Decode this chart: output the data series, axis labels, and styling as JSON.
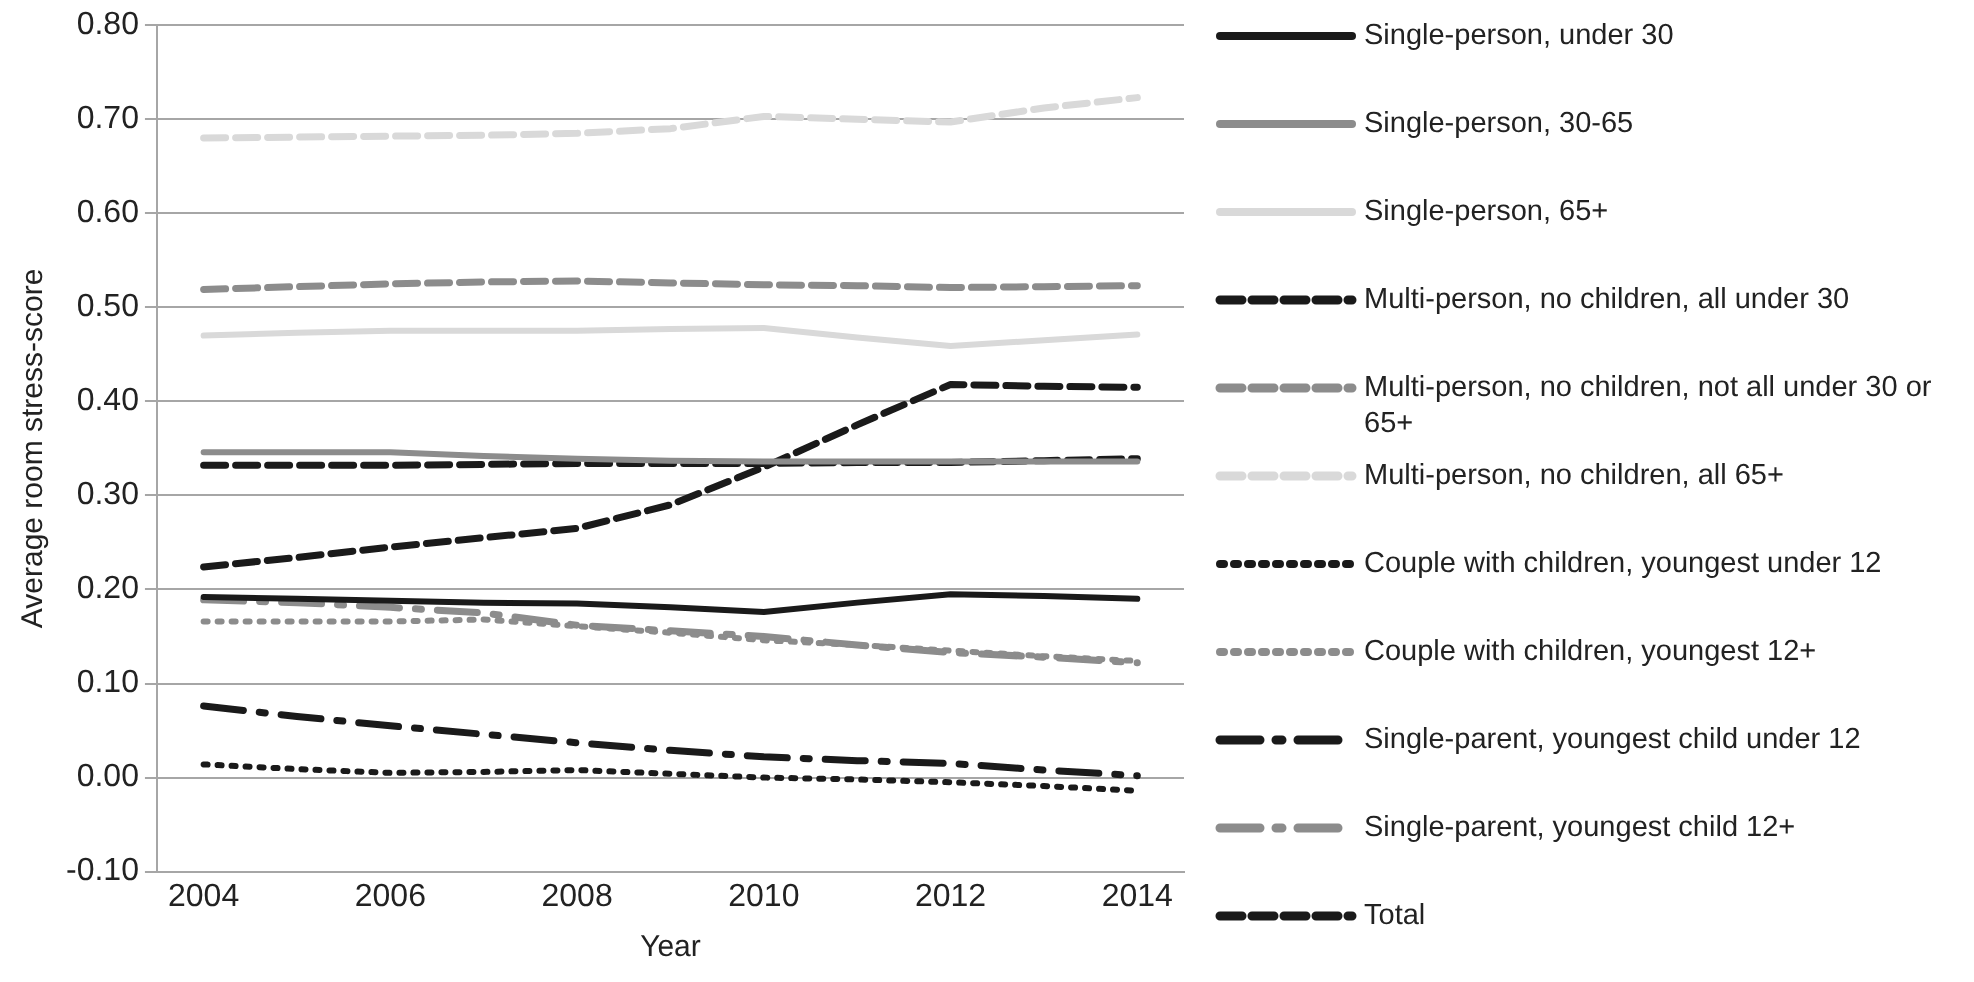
{
  "chart_data": {
    "type": "line",
    "xlabel": "Year",
    "ylabel": "Average room stress-score",
    "categories": [
      "2004",
      null,
      "2006",
      null,
      "2008",
      null,
      "2010",
      null,
      "2012",
      null,
      "2014"
    ],
    "ylim": [
      -0.1,
      0.8
    ],
    "yticks": [
      {
        "value": -0.1,
        "label": "-0.10"
      },
      {
        "value": 0,
        "label": "0.00"
      },
      {
        "value": 0.1,
        "label": "0.10"
      },
      {
        "value": 0.2,
        "label": "0.20"
      },
      {
        "value": 0.3,
        "label": "0.30"
      },
      {
        "value": 0.4,
        "label": "0.40"
      },
      {
        "value": 0.5,
        "label": "0.50"
      },
      {
        "value": 0.6,
        "label": "0.60"
      },
      {
        "value": 0.7,
        "label": "0.70"
      },
      {
        "value": 0.8,
        "label": "0.80"
      }
    ],
    "grid": "y",
    "legend": "right",
    "marker": "none",
    "series": [
      {
        "name": "Single-person, under 30",
        "color": "#1a1a1a",
        "line_style": "solid",
        "values": [
          0.192,
          0.19,
          0.188,
          0.186,
          0.185,
          0.181,
          0.176,
          0.186,
          0.195,
          0.193,
          0.19
        ]
      },
      {
        "name": "Single-person, 30-65",
        "color": "#8c8c8c",
        "line_style": "solid",
        "values": [
          0.346,
          0.346,
          0.346,
          0.342,
          0.339,
          0.337,
          0.336,
          0.336,
          0.336,
          0.336,
          0.336
        ]
      },
      {
        "name": "Single-person, 65+",
        "color": "#d9d9d9",
        "line_style": "solid",
        "values": [
          0.47,
          0.473,
          0.475,
          0.475,
          0.475,
          0.477,
          0.478,
          0.468,
          0.459,
          0.465,
          0.471
        ]
      },
      {
        "name": "Multi-person, no children, all under 30",
        "color": "#1a1a1a",
        "line_style": "dashed",
        "values": [
          0.224,
          0.234,
          0.245,
          0.255,
          0.265,
          0.29,
          0.33,
          0.375,
          0.418,
          0.416,
          0.415
        ]
      },
      {
        "name": "Multi-person, no children, not all under 30 or 65+",
        "color": "#8c8c8c",
        "line_style": "dashed",
        "values": [
          0.519,
          0.522,
          0.525,
          0.527,
          0.528,
          0.526,
          0.524,
          0.523,
          0.521,
          0.522,
          0.523
        ]
      },
      {
        "name": "Multi-person, no children, all 65+",
        "color": "#d9d9d9",
        "line_style": "dashed",
        "values": [
          0.68,
          0.681,
          0.682,
          0.683,
          0.685,
          0.69,
          0.703,
          0.7,
          0.697,
          0.712,
          0.723
        ]
      },
      {
        "name": "Couple with children, youngest under 12",
        "color": "#1a1a1a",
        "line_style": "dotted",
        "values": [
          0.014,
          0.009,
          0.005,
          0.006,
          0.008,
          0.004,
          0,
          -0.002,
          -0.005,
          -0.009,
          -0.014
        ]
      },
      {
        "name": "Couple with children, youngest 12+",
        "color": "#8c8c8c",
        "line_style": "dotted",
        "values": [
          0.166,
          0.166,
          0.166,
          0.168,
          0.161,
          0.154,
          0.146,
          0.141,
          0.135,
          0.129,
          0.124
        ]
      },
      {
        "name": "Single-parent, youngest child under 12",
        "color": "#1a1a1a",
        "line_style": "dashdot",
        "values": [
          0.076,
          0.065,
          0.055,
          0.046,
          0.037,
          0.029,
          0.022,
          0.018,
          0.015,
          0.008,
          0.002
        ]
      },
      {
        "name": "Single-parent, youngest child 12+",
        "color": "#8c8c8c",
        "line_style": "dashdot",
        "values": [
          0.189,
          0.186,
          0.181,
          0.175,
          0.162,
          0.156,
          0.15,
          0.141,
          0.133,
          0.128,
          0.122
        ]
      },
      {
        "name": "Total",
        "color": "#1a1a1a",
        "line_style": "dashed",
        "values": [
          0.332,
          0.332,
          0.332,
          0.333,
          0.334,
          0.334,
          0.334,
          0.335,
          0.335,
          0.337,
          0.339
        ]
      }
    ]
  }
}
